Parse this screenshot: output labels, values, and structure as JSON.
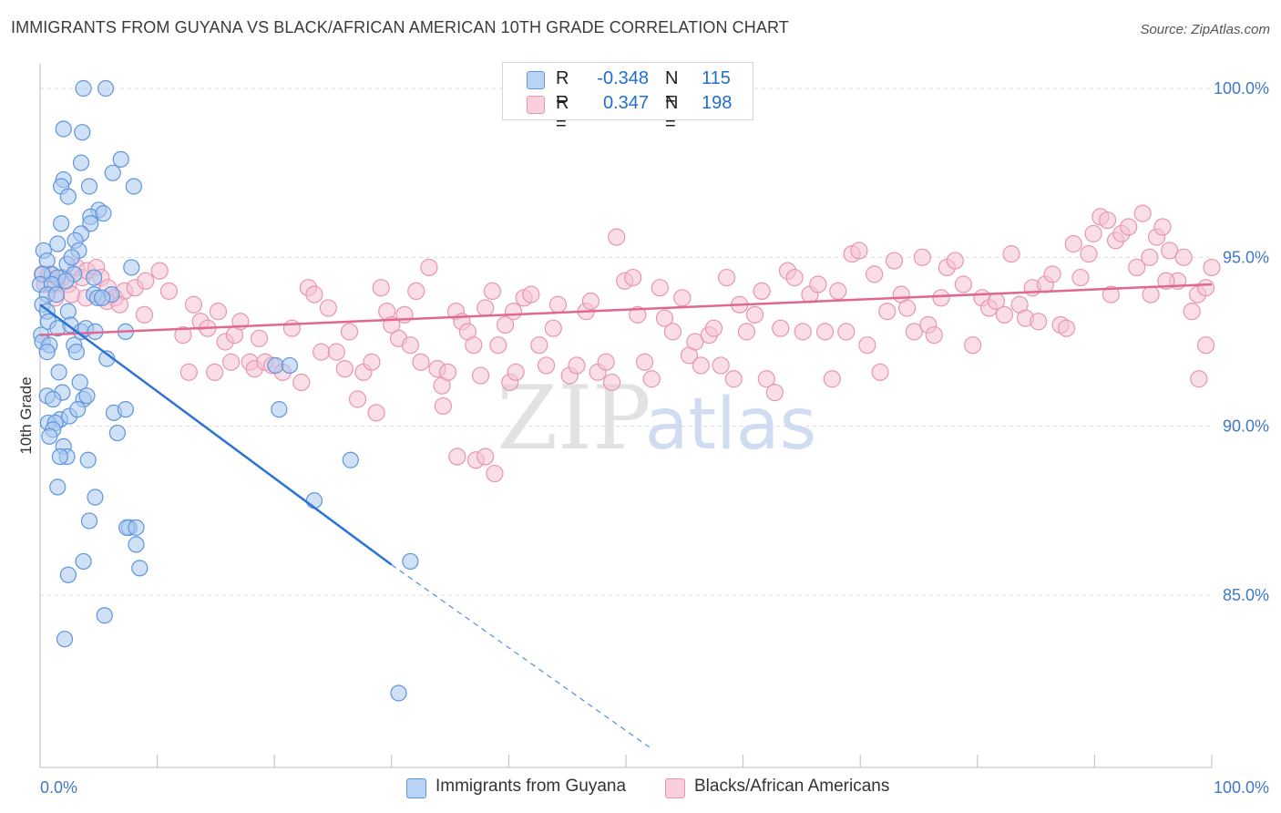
{
  "title": "IMMIGRANTS FROM GUYANA VS BLACK/AFRICAN AMERICAN 10TH GRADE CORRELATION CHART",
  "source": "Source: ZipAtlas.com",
  "watermark": {
    "zip": "ZIP",
    "atlas": "atlas"
  },
  "legend": {
    "rows": [
      {
        "r_label": "R =",
        "r_value": "-0.348",
        "n_label": "N =",
        "n_value": "115"
      },
      {
        "r_label": "R =",
        "r_value": "0.347",
        "n_label": "N =",
        "n_value": "198"
      }
    ]
  },
  "bottom_legend": [
    "Immigrants from Guyana",
    "Blacks/African Americans"
  ],
  "colors": {
    "blue_fill": "#a9c8f0",
    "blue_stroke": "#5e95db",
    "blue_line": "#2a72d4",
    "pink_fill": "#f6c3d3",
    "pink_stroke": "#e895b2",
    "pink_line": "#e0678f",
    "tick_label": "#3f78c9",
    "grid": "#dcdcdc"
  },
  "chart_data": {
    "type": "scatter",
    "title": "IMMIGRANTS FROM GUYANA VS BLACK/AFRICAN AMERICAN 10TH GRADE CORRELATION CHART",
    "xlabel": "",
    "ylabel": "10th Grade",
    "xlim": [
      0,
      100
    ],
    "ylim": [
      80.5,
      101.0
    ],
    "x_tick_labels": [
      "0.0%",
      "100.0%"
    ],
    "y_ticks": [
      85,
      90,
      95,
      100
    ],
    "y_tick_labels": [
      "85.0%",
      "90.0%",
      "95.0%",
      "100.0%"
    ],
    "grid": true,
    "legend_position": "top-center",
    "series": [
      {
        "name": "Immigrants from Guyana",
        "color": "#a9c8f0",
        "trend": {
          "x": [
            0,
            30
          ],
          "y": [
            93.6,
            85.9
          ],
          "dashed_to": [
            52,
            80.5
          ]
        },
        "points": [
          [
            3.7,
            100
          ],
          [
            5.6,
            100
          ],
          [
            2.0,
            98.8
          ],
          [
            3.6,
            98.7
          ],
          [
            3.5,
            97.8
          ],
          [
            6.9,
            97.9
          ],
          [
            6.2,
            97.5
          ],
          [
            2.0,
            97.3
          ],
          [
            1.8,
            97.1
          ],
          [
            4.2,
            97.1
          ],
          [
            8.0,
            97.1
          ],
          [
            2.4,
            96.8
          ],
          [
            5.0,
            96.4
          ],
          [
            4.3,
            96.2
          ],
          [
            1.8,
            96.0
          ],
          [
            5.4,
            96.3
          ],
          [
            4.3,
            96.0
          ],
          [
            3.5,
            95.7
          ],
          [
            3.0,
            95.5
          ],
          [
            3.3,
            95.2
          ],
          [
            1.5,
            95.4
          ],
          [
            0.3,
            95.2
          ],
          [
            0.6,
            94.9
          ],
          [
            2.3,
            94.8
          ],
          [
            2.7,
            95.0
          ],
          [
            7.8,
            94.7
          ],
          [
            1.0,
            94.5
          ],
          [
            0.2,
            94.5
          ],
          [
            1.5,
            94.4
          ],
          [
            2.9,
            94.5
          ],
          [
            4.6,
            94.4
          ],
          [
            0.0,
            94.2
          ],
          [
            1.0,
            94.2
          ],
          [
            2.2,
            94.3
          ],
          [
            0.6,
            93.9
          ],
          [
            1.4,
            93.9
          ],
          [
            6.1,
            93.9
          ],
          [
            4.6,
            93.9
          ],
          [
            4.9,
            93.8
          ],
          [
            5.3,
            93.8
          ],
          [
            0.2,
            93.6
          ],
          [
            0.6,
            93.4
          ],
          [
            2.4,
            93.4
          ],
          [
            0.7,
            93.1
          ],
          [
            1.5,
            92.9
          ],
          [
            2.6,
            93.0
          ],
          [
            3.5,
            92.8
          ],
          [
            3.9,
            92.9
          ],
          [
            7.3,
            92.8
          ],
          [
            0.1,
            92.7
          ],
          [
            4.7,
            92.8
          ],
          [
            0.2,
            92.5
          ],
          [
            0.8,
            92.4
          ],
          [
            2.9,
            92.4
          ],
          [
            3.1,
            92.2
          ],
          [
            0.6,
            92.2
          ],
          [
            5.7,
            92.0
          ],
          [
            1.6,
            91.6
          ],
          [
            3.4,
            91.3
          ],
          [
            1.9,
            91.0
          ],
          [
            0.6,
            90.9
          ],
          [
            3.7,
            90.8
          ],
          [
            4.0,
            90.9
          ],
          [
            1.1,
            90.8
          ],
          [
            1.7,
            90.2
          ],
          [
            0.7,
            90.1
          ],
          [
            2.5,
            90.3
          ],
          [
            1.3,
            90.1
          ],
          [
            3.2,
            90.5
          ],
          [
            6.3,
            90.4
          ],
          [
            7.3,
            90.5
          ],
          [
            1.1,
            89.9
          ],
          [
            0.8,
            89.7
          ],
          [
            6.6,
            89.8
          ],
          [
            2.0,
            89.4
          ],
          [
            2.3,
            89.1
          ],
          [
            1.7,
            89.1
          ],
          [
            4.1,
            89.0
          ],
          [
            20.4,
            90.5
          ],
          [
            20.1,
            91.8
          ],
          [
            21.3,
            91.8
          ],
          [
            7.6,
            87.0
          ],
          [
            1.5,
            88.2
          ],
          [
            4.7,
            87.9
          ],
          [
            4.2,
            87.2
          ],
          [
            7.4,
            87.0
          ],
          [
            8.2,
            87.0
          ],
          [
            8.2,
            86.5
          ],
          [
            8.5,
            85.8
          ],
          [
            3.7,
            86.0
          ],
          [
            2.4,
            85.6
          ],
          [
            26.5,
            89.0
          ],
          [
            23.4,
            87.8
          ],
          [
            31.6,
            86.0
          ],
          [
            5.5,
            84.4
          ],
          [
            2.1,
            83.7
          ],
          [
            30.6,
            82.1
          ]
        ]
      },
      {
        "name": "Blacks/African Americans",
        "color": "#f6c3d3",
        "trend": {
          "x": [
            0,
            100
          ],
          "y": [
            92.7,
            94.2
          ]
        },
        "points": [
          [
            0.2,
            94.5
          ],
          [
            0.4,
            94.2
          ],
          [
            0.8,
            94.5
          ],
          [
            1.3,
            94.2
          ],
          [
            1.9,
            94.4
          ],
          [
            2.4,
            94.2
          ],
          [
            3.1,
            94.7
          ],
          [
            3.6,
            94.4
          ],
          [
            4.0,
            94.6
          ],
          [
            4.8,
            94.7
          ],
          [
            5.2,
            94.4
          ],
          [
            5.8,
            94.1
          ],
          [
            6.4,
            93.8
          ],
          [
            7.2,
            94.0
          ],
          [
            8.1,
            94.1
          ],
          [
            9.0,
            94.3
          ],
          [
            10.2,
            94.6
          ],
          [
            11.0,
            94.0
          ],
          [
            1.3,
            93.8
          ],
          [
            2.7,
            93.9
          ],
          [
            3.9,
            93.8
          ],
          [
            5.7,
            93.7
          ],
          [
            6.8,
            93.6
          ],
          [
            8.9,
            93.3
          ],
          [
            12.2,
            92.7
          ],
          [
            12.7,
            91.6
          ],
          [
            13.1,
            93.6
          ],
          [
            13.7,
            93.1
          ],
          [
            14.3,
            92.9
          ],
          [
            14.9,
            91.6
          ],
          [
            15.2,
            93.4
          ],
          [
            15.8,
            92.5
          ],
          [
            16.3,
            91.9
          ],
          [
            16.6,
            92.7
          ],
          [
            17.1,
            93.1
          ],
          [
            17.9,
            91.9
          ],
          [
            18.3,
            91.7
          ],
          [
            18.7,
            92.6
          ],
          [
            19.2,
            91.9
          ],
          [
            19.8,
            91.8
          ],
          [
            20.7,
            91.6
          ],
          [
            21.5,
            92.9
          ],
          [
            22.3,
            91.3
          ],
          [
            22.9,
            94.1
          ],
          [
            23.4,
            93.9
          ],
          [
            24.0,
            92.2
          ],
          [
            24.6,
            93.5
          ],
          [
            25.3,
            92.2
          ],
          [
            26.0,
            91.7
          ],
          [
            26.4,
            92.8
          ],
          [
            27.1,
            90.8
          ],
          [
            27.6,
            91.6
          ],
          [
            28.3,
            91.9
          ],
          [
            28.7,
            90.4
          ],
          [
            29.1,
            94.1
          ],
          [
            29.6,
            93.4
          ],
          [
            30.0,
            93.0
          ],
          [
            30.6,
            92.6
          ],
          [
            31.1,
            93.3
          ],
          [
            31.6,
            92.4
          ],
          [
            32.1,
            94.0
          ],
          [
            32.5,
            91.9
          ],
          [
            33.2,
            94.7
          ],
          [
            33.9,
            91.7
          ],
          [
            34.3,
            91.2
          ],
          [
            34.8,
            91.6
          ],
          [
            35.5,
            93.4
          ],
          [
            36.0,
            93.1
          ],
          [
            36.5,
            92.8
          ],
          [
            37.0,
            92.4
          ],
          [
            37.6,
            91.5
          ],
          [
            38.0,
            93.5
          ],
          [
            38.6,
            94.0
          ],
          [
            39.1,
            92.4
          ],
          [
            39.7,
            93.0
          ],
          [
            40.4,
            93.4
          ],
          [
            41.3,
            93.8
          ],
          [
            41.9,
            93.9
          ],
          [
            42.6,
            92.4
          ],
          [
            43.2,
            91.8
          ],
          [
            43.8,
            92.9
          ],
          [
            44.2,
            93.6
          ],
          [
            45.2,
            91.5
          ],
          [
            45.8,
            91.8
          ],
          [
            46.6,
            93.4
          ],
          [
            47.0,
            93.7
          ],
          [
            47.6,
            91.6
          ],
          [
            48.3,
            91.9
          ],
          [
            48.8,
            91.3
          ],
          [
            49.2,
            95.6
          ],
          [
            49.9,
            94.3
          ],
          [
            50.6,
            94.4
          ],
          [
            51.0,
            93.3
          ],
          [
            51.6,
            91.9
          ],
          [
            52.2,
            91.4
          ],
          [
            52.9,
            94.1
          ],
          [
            53.3,
            93.2
          ],
          [
            54.0,
            92.8
          ],
          [
            54.8,
            93.8
          ],
          [
            55.4,
            92.1
          ],
          [
            55.9,
            92.5
          ],
          [
            56.4,
            91.8
          ],
          [
            57.1,
            92.7
          ],
          [
            57.5,
            92.9
          ],
          [
            58.1,
            91.8
          ],
          [
            58.6,
            94.4
          ],
          [
            59.2,
            91.4
          ],
          [
            59.7,
            93.6
          ],
          [
            60.3,
            92.8
          ],
          [
            61.0,
            93.3
          ],
          [
            61.6,
            94.0
          ],
          [
            62.0,
            91.4
          ],
          [
            62.7,
            91.0
          ],
          [
            63.2,
            92.9
          ],
          [
            63.8,
            94.6
          ],
          [
            64.4,
            94.4
          ],
          [
            65.1,
            92.8
          ],
          [
            65.7,
            93.9
          ],
          [
            66.4,
            94.2
          ],
          [
            67.0,
            92.8
          ],
          [
            67.6,
            91.4
          ],
          [
            68.1,
            94.0
          ],
          [
            68.8,
            92.8
          ],
          [
            69.3,
            95.1
          ],
          [
            69.9,
            95.2
          ],
          [
            70.6,
            92.4
          ],
          [
            71.2,
            94.5
          ],
          [
            71.7,
            91.6
          ],
          [
            72.3,
            93.4
          ],
          [
            72.9,
            94.9
          ],
          [
            73.5,
            93.9
          ],
          [
            74.0,
            93.5
          ],
          [
            74.6,
            92.8
          ],
          [
            75.3,
            95.0
          ],
          [
            75.8,
            93.0
          ],
          [
            76.3,
            92.7
          ],
          [
            76.9,
            93.8
          ],
          [
            77.4,
            94.7
          ],
          [
            78.1,
            94.9
          ],
          [
            78.8,
            94.2
          ],
          [
            79.6,
            92.4
          ],
          [
            80.4,
            93.8
          ],
          [
            81.0,
            93.5
          ],
          [
            81.6,
            93.7
          ],
          [
            82.3,
            93.3
          ],
          [
            82.9,
            95.1
          ],
          [
            83.6,
            93.6
          ],
          [
            84.1,
            93.2
          ],
          [
            84.7,
            94.1
          ],
          [
            85.2,
            93.1
          ],
          [
            85.8,
            94.2
          ],
          [
            86.4,
            94.5
          ],
          [
            87.1,
            93.0
          ],
          [
            87.6,
            92.9
          ],
          [
            88.2,
            95.4
          ],
          [
            88.8,
            94.4
          ],
          [
            89.5,
            95.1
          ],
          [
            89.9,
            95.7
          ],
          [
            90.5,
            96.2
          ],
          [
            91.1,
            96.1
          ],
          [
            91.8,
            95.5
          ],
          [
            92.3,
            95.7
          ],
          [
            92.9,
            95.9
          ],
          [
            93.6,
            94.7
          ],
          [
            94.1,
            96.3
          ],
          [
            94.7,
            95.0
          ],
          [
            95.3,
            95.6
          ],
          [
            95.8,
            95.9
          ],
          [
            96.4,
            95.2
          ],
          [
            97.1,
            94.3
          ],
          [
            97.6,
            95.0
          ],
          [
            98.3,
            93.4
          ],
          [
            98.8,
            93.9
          ],
          [
            99.5,
            94.1
          ],
          [
            100.0,
            94.7
          ],
          [
            91.4,
            93.9
          ],
          [
            94.8,
            93.9
          ],
          [
            96.1,
            94.3
          ],
          [
            98.9,
            91.4
          ],
          [
            99.5,
            92.4
          ],
          [
            34.4,
            90.6
          ],
          [
            35.6,
            89.1
          ],
          [
            37.2,
            89.0
          ],
          [
            38.0,
            89.1
          ],
          [
            38.8,
            88.6
          ],
          [
            40.1,
            91.3
          ],
          [
            40.6,
            91.6
          ]
        ]
      }
    ]
  }
}
